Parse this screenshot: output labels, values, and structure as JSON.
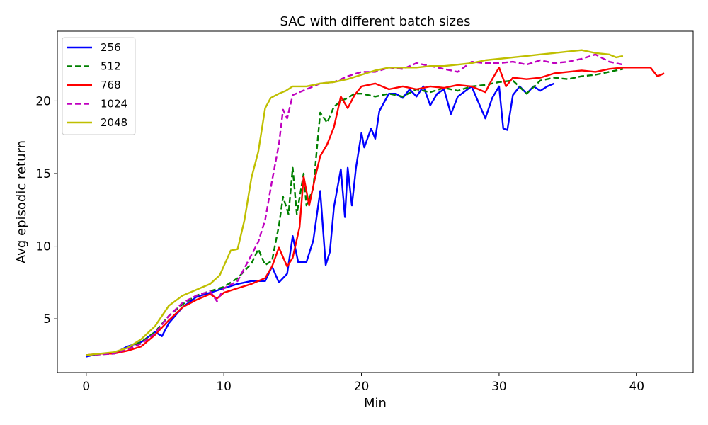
{
  "chart_data": {
    "type": "line",
    "title": "SAC with different batch sizes",
    "xlabel": "Min",
    "ylabel": "Avg episodic return",
    "xlim": [
      -2.1,
      44.1
    ],
    "ylim": [
      1.3,
      24.8
    ],
    "xticks": [
      0,
      10,
      20,
      30,
      40
    ],
    "yticks": [
      5,
      10,
      15,
      20
    ],
    "grid": false,
    "legend_position": "top-left",
    "series": [
      {
        "name": "256",
        "color": "#0000ff",
        "dash": "solid",
        "points": [
          [
            0,
            2.4
          ],
          [
            1,
            2.6
          ],
          [
            2,
            2.6
          ],
          [
            3,
            3.1
          ],
          [
            4,
            3.4
          ],
          [
            5,
            4.1
          ],
          [
            5.5,
            3.8
          ],
          [
            6,
            4.7
          ],
          [
            7,
            5.8
          ],
          [
            8,
            6.5
          ],
          [
            9,
            6.8
          ],
          [
            10,
            7.1
          ],
          [
            11,
            7.4
          ],
          [
            12,
            7.6
          ],
          [
            13,
            7.6
          ],
          [
            13.5,
            8.6
          ],
          [
            14,
            7.5
          ],
          [
            14.6,
            8.1
          ],
          [
            15,
            10.7
          ],
          [
            15.4,
            8.9
          ],
          [
            16,
            8.9
          ],
          [
            16.5,
            10.4
          ],
          [
            17,
            13.8
          ],
          [
            17.4,
            8.7
          ],
          [
            17.7,
            9.6
          ],
          [
            18,
            12.7
          ],
          [
            18.5,
            15.3
          ],
          [
            18.8,
            12
          ],
          [
            19,
            15.4
          ],
          [
            19.3,
            12.8
          ],
          [
            19.6,
            15.4
          ],
          [
            20,
            17.8
          ],
          [
            20.2,
            16.8
          ],
          [
            20.7,
            18.1
          ],
          [
            21,
            17.4
          ],
          [
            21.3,
            19.3
          ],
          [
            21.7,
            20
          ],
          [
            22,
            20.5
          ],
          [
            22.5,
            20.5
          ],
          [
            23,
            20.2
          ],
          [
            23.5,
            20.8
          ],
          [
            24,
            20.3
          ],
          [
            24.5,
            21
          ],
          [
            25,
            19.7
          ],
          [
            25.5,
            20.5
          ],
          [
            26,
            20.8
          ],
          [
            26.5,
            19.1
          ],
          [
            27,
            20.3
          ],
          [
            28,
            21
          ],
          [
            29,
            18.8
          ],
          [
            29.5,
            20.2
          ],
          [
            30,
            21
          ],
          [
            30.3,
            18.1
          ],
          [
            30.6,
            18
          ],
          [
            31,
            20.4
          ],
          [
            31.5,
            21
          ],
          [
            32,
            20.5
          ],
          [
            32.5,
            21
          ],
          [
            33,
            20.7
          ],
          [
            33.5,
            21
          ],
          [
            34,
            21.2
          ]
        ]
      },
      {
        "name": "512",
        "color": "#008000",
        "dash": "dashed",
        "points": [
          [
            0,
            2.5
          ],
          [
            2,
            2.6
          ],
          [
            3,
            3
          ],
          [
            4,
            3.4
          ],
          [
            5,
            4.1
          ],
          [
            6,
            5.2
          ],
          [
            7,
            6
          ],
          [
            8,
            6.6
          ],
          [
            9,
            6.9
          ],
          [
            10,
            7.2
          ],
          [
            11,
            7.8
          ],
          [
            12,
            8.8
          ],
          [
            12.5,
            9.8
          ],
          [
            13,
            8.7
          ],
          [
            13.5,
            9
          ],
          [
            14,
            11.4
          ],
          [
            14.3,
            13.4
          ],
          [
            14.7,
            12.2
          ],
          [
            15,
            15.4
          ],
          [
            15.3,
            12.2
          ],
          [
            15.8,
            15
          ],
          [
            16,
            12.8
          ],
          [
            16.5,
            14
          ],
          [
            17,
            19.2
          ],
          [
            17.5,
            18.5
          ],
          [
            18,
            19.6
          ],
          [
            18.5,
            20
          ],
          [
            19,
            20.2
          ],
          [
            19.5,
            20.5
          ],
          [
            20,
            20.5
          ],
          [
            21,
            20.3
          ],
          [
            22,
            20.5
          ],
          [
            23,
            20.3
          ],
          [
            24,
            20.8
          ],
          [
            25,
            20.6
          ],
          [
            26,
            20.9
          ],
          [
            27,
            20.7
          ],
          [
            28,
            21
          ],
          [
            29,
            21.1
          ],
          [
            30,
            21.3
          ],
          [
            31,
            21.4
          ],
          [
            32,
            20.5
          ],
          [
            33,
            21.4
          ],
          [
            34,
            21.6
          ],
          [
            35,
            21.5
          ],
          [
            36,
            21.7
          ],
          [
            37,
            21.8
          ],
          [
            38,
            22
          ],
          [
            39,
            22.2
          ]
        ]
      },
      {
        "name": "768",
        "color": "#ff0000",
        "dash": "solid",
        "points": [
          [
            0,
            2.5
          ],
          [
            1,
            2.6
          ],
          [
            2,
            2.6
          ],
          [
            3,
            2.8
          ],
          [
            4,
            3.1
          ],
          [
            5,
            3.9
          ],
          [
            6,
            4.9
          ],
          [
            7,
            5.8
          ],
          [
            8,
            6.3
          ],
          [
            9,
            6.7
          ],
          [
            9.5,
            6.4
          ],
          [
            10,
            6.8
          ],
          [
            11,
            7.1
          ],
          [
            12,
            7.4
          ],
          [
            13,
            7.8
          ],
          [
            13.5,
            8.6
          ],
          [
            14,
            9.9
          ],
          [
            14.6,
            8.6
          ],
          [
            15,
            9.2
          ],
          [
            15.5,
            11.3
          ],
          [
            15.8,
            14.8
          ],
          [
            16.2,
            12.8
          ],
          [
            16.6,
            14.6
          ],
          [
            17,
            16.2
          ],
          [
            17.5,
            17
          ],
          [
            18,
            18.2
          ],
          [
            18.5,
            20.3
          ],
          [
            19,
            19.5
          ],
          [
            19.5,
            20.4
          ],
          [
            20,
            21
          ],
          [
            21,
            21.2
          ],
          [
            22,
            20.8
          ],
          [
            23,
            21
          ],
          [
            24,
            20.8
          ],
          [
            25,
            21
          ],
          [
            26,
            20.9
          ],
          [
            27,
            21.1
          ],
          [
            28,
            21
          ],
          [
            29,
            20.6
          ],
          [
            29.5,
            21.5
          ],
          [
            30,
            22.3
          ],
          [
            30.5,
            21
          ],
          [
            31,
            21.6
          ],
          [
            32,
            21.5
          ],
          [
            33,
            21.6
          ],
          [
            34,
            21.9
          ],
          [
            35,
            22
          ],
          [
            36,
            22.1
          ],
          [
            37,
            22
          ],
          [
            38,
            22.2
          ],
          [
            39,
            22.3
          ],
          [
            40,
            22.3
          ],
          [
            41,
            22.3
          ],
          [
            41.5,
            21.7
          ],
          [
            42,
            21.9
          ]
        ]
      },
      {
        "name": "1024",
        "color": "#bf00bf",
        "dash": "dashed",
        "points": [
          [
            0,
            2.5
          ],
          [
            2,
            2.6
          ],
          [
            3,
            2.9
          ],
          [
            4,
            3.3
          ],
          [
            5,
            4
          ],
          [
            6,
            5.2
          ],
          [
            7,
            6.1
          ],
          [
            8,
            6.6
          ],
          [
            9,
            6.9
          ],
          [
            9.5,
            6.2
          ],
          [
            10,
            7.1
          ],
          [
            11,
            7.6
          ],
          [
            12,
            9.4
          ],
          [
            12.5,
            10.3
          ],
          [
            13,
            11.8
          ],
          [
            13.5,
            14.5
          ],
          [
            14,
            17
          ],
          [
            14.3,
            19.4
          ],
          [
            14.6,
            18.8
          ],
          [
            15,
            20.4
          ],
          [
            16,
            20.8
          ],
          [
            17,
            21.2
          ],
          [
            18,
            21.3
          ],
          [
            19,
            21.7
          ],
          [
            20,
            22
          ],
          [
            21,
            22
          ],
          [
            22,
            22.3
          ],
          [
            23,
            22.2
          ],
          [
            24,
            22.6
          ],
          [
            25,
            22.4
          ],
          [
            26,
            22.2
          ],
          [
            27,
            22
          ],
          [
            28,
            22.7
          ],
          [
            29,
            22.6
          ],
          [
            30,
            22.6
          ],
          [
            31,
            22.7
          ],
          [
            32,
            22.5
          ],
          [
            33,
            22.8
          ],
          [
            34,
            22.6
          ],
          [
            35,
            22.7
          ],
          [
            36,
            22.9
          ],
          [
            37,
            23.2
          ],
          [
            38,
            22.7
          ],
          [
            39,
            22.5
          ]
        ]
      },
      {
        "name": "2048",
        "color": "#bfbf00",
        "dash": "solid",
        "points": [
          [
            0,
            2.5
          ],
          [
            1,
            2.6
          ],
          [
            2,
            2.7
          ],
          [
            3,
            3
          ],
          [
            4,
            3.6
          ],
          [
            5,
            4.5
          ],
          [
            6,
            5.9
          ],
          [
            7,
            6.6
          ],
          [
            8,
            7
          ],
          [
            9,
            7.4
          ],
          [
            9.7,
            8
          ],
          [
            10.5,
            9.7
          ],
          [
            11,
            9.8
          ],
          [
            11.5,
            11.8
          ],
          [
            12,
            14.7
          ],
          [
            12.5,
            16.5
          ],
          [
            13,
            19.5
          ],
          [
            13.4,
            20.2
          ],
          [
            14,
            20.5
          ],
          [
            14.5,
            20.7
          ],
          [
            15,
            21
          ],
          [
            16,
            21
          ],
          [
            17,
            21.2
          ],
          [
            18,
            21.3
          ],
          [
            19,
            21.5
          ],
          [
            20,
            21.8
          ],
          [
            21,
            22.1
          ],
          [
            22,
            22.3
          ],
          [
            23,
            22.3
          ],
          [
            24,
            22.3
          ],
          [
            25,
            22.4
          ],
          [
            26,
            22.4
          ],
          [
            27,
            22.5
          ],
          [
            28,
            22.6
          ],
          [
            29,
            22.8
          ],
          [
            30,
            22.9
          ],
          [
            31,
            23
          ],
          [
            32,
            23.1
          ],
          [
            33,
            23.2
          ],
          [
            34,
            23.3
          ],
          [
            35,
            23.4
          ],
          [
            36,
            23.5
          ],
          [
            37,
            23.3
          ],
          [
            38,
            23.2
          ],
          [
            38.5,
            23
          ],
          [
            39,
            23.1
          ]
        ]
      }
    ]
  }
}
